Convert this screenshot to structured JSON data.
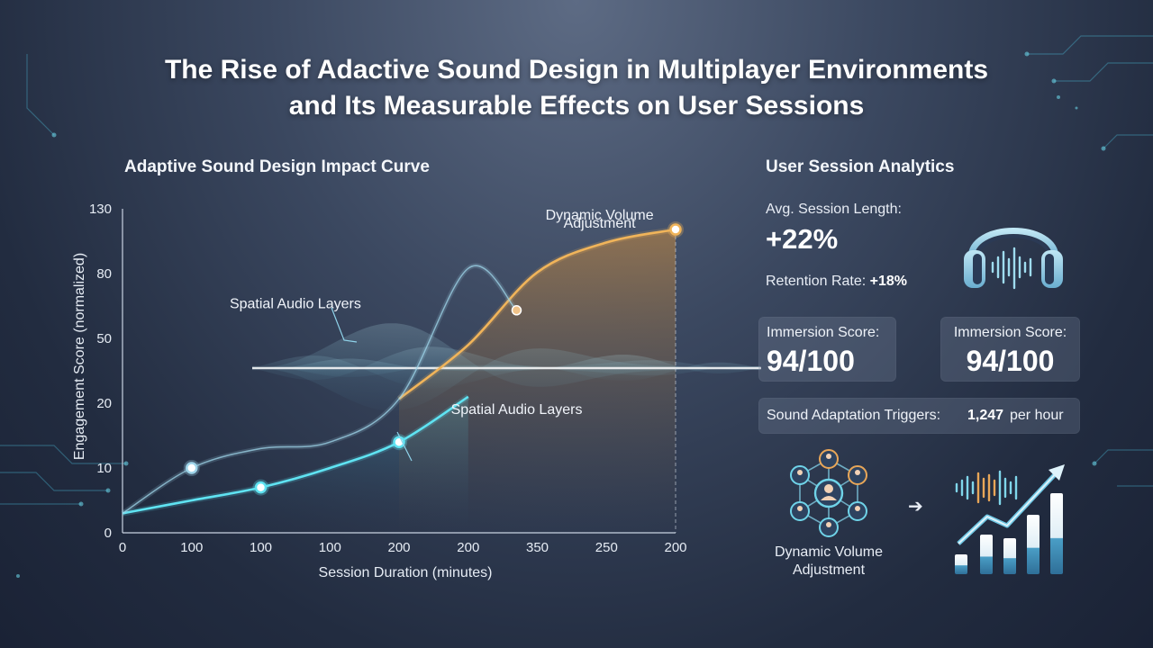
{
  "title": {
    "line1": "The Rise of Adactive Sound Design in Multiplayer Environments",
    "line2": "and Its Measurable Effects on User Sessions"
  },
  "chart_data": {
    "type": "line",
    "title": "Adaptive Sound Design Impact Curve",
    "xlabel": "Session Duration (minutes)",
    "ylabel": "Engagement Score (normalized)",
    "x_tick_labels": [
      "0",
      "100",
      "100",
      "100",
      "200",
      "200",
      "350",
      "250",
      "200"
    ],
    "y_tick_labels": [
      "0",
      "10",
      "20",
      "50",
      "80",
      "130"
    ],
    "x_index_range": [
      0,
      8
    ],
    "series": [
      {
        "name": "",
        "color": "#5fe3f2",
        "x": [
          0,
          1,
          2,
          3,
          4,
          5
        ],
        "y": [
          3,
          5,
          7,
          10,
          14,
          23
        ],
        "markers": [
          2,
          4
        ]
      },
      {
        "name": "",
        "color": "#f0b45a",
        "x": [
          4,
          5,
          6,
          7,
          8
        ],
        "y": [
          22,
          47,
          81,
          104,
          114
        ],
        "markers": [
          8
        ]
      },
      {
        "name": "",
        "color": "#9fd5ea",
        "x": [
          0,
          1,
          2,
          3,
          4,
          5,
          5.7
        ],
        "y": [
          3,
          10,
          13,
          14,
          22,
          84,
          63
        ],
        "markers": [
          1
        ]
      }
    ],
    "annotations": [
      {
        "text": "Spatial Audio Layers",
        "near_x": 2.5,
        "near_y": 66
      },
      {
        "text": "Dynamic Volume",
        "near_x": 6.9,
        "near_y": 125
      },
      {
        "text": "Adjustment",
        "near_x": 6.9,
        "near_y": 119
      },
      {
        "text": "Spatial Audio Layers",
        "near_x": 5.7,
        "near_y": 19
      }
    ],
    "grid": false,
    "legend": "none"
  },
  "panel": {
    "title": "User Session Analytics",
    "avg_label": "Avg. Session Length:",
    "avg_value": "+22%",
    "retention_label": "Retention Rate:",
    "retention_value": "+18%",
    "cards": [
      {
        "label": "Immersion Score:",
        "value": "94/100"
      },
      {
        "label": "Immersion Score:",
        "value": "94/100"
      }
    ],
    "triggers_label": "Sound Adaptation Triggers:",
    "triggers_value": "1,247",
    "triggers_unit": "per hour",
    "dva_caption_1": "Dynamic Volume",
    "dva_caption_2": "Adjustment",
    "arrow_glyph": "➔"
  },
  "icons": [
    "headphones-icon",
    "network-icon",
    "arrow-icon",
    "growth-chart-icon"
  ],
  "colors": {
    "cyan": "#5fe3f2",
    "amber": "#f0b45a",
    "light_blue": "#9fd5ea",
    "background": "#2c374d"
  }
}
